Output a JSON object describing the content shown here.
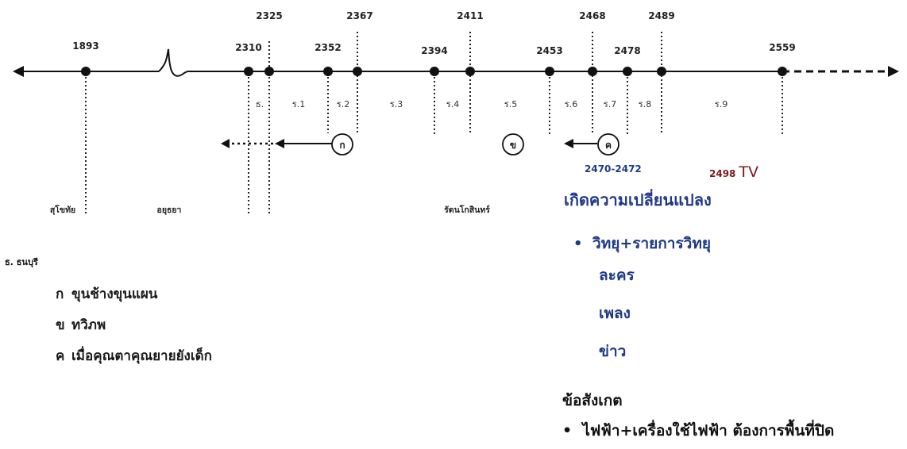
{
  "years": {
    "y1893": "1893",
    "y2310": "2310",
    "y2325": "2325",
    "y2352": "2352",
    "y2367": "2367",
    "y2394": "2394",
    "y2411": "2411",
    "y2453": "2453",
    "y2468": "2468",
    "y2478": "2478",
    "y2489": "2489",
    "y2559": "2559"
  },
  "periods": [
    "ธ.",
    "ร.1",
    "ร.2",
    "ร.3",
    "ร.4",
    "ร.5",
    "ร.6",
    "ร.7",
    "ร.8",
    "ร.9"
  ],
  "eras": {
    "sukhothai": "สุโขทัย",
    "ayutthaya": "อยุธยา",
    "rattanakosin": "รัตนโกสินทร์"
  },
  "markers": {
    "ko": "ก",
    "kho": "ข",
    "kho_khwai": "ค"
  },
  "legend": {
    "note": "ธ. ธนบุรี",
    "items": [
      {
        "key": "ก",
        "label": "ขุนช้างขุนแผน"
      },
      {
        "key": "ข",
        "label": "ทวิภพ"
      },
      {
        "key": "ค",
        "label": "เมื่อคุณตาคุณยายยังเด็ก"
      }
    ]
  },
  "notes": {
    "range": "2470-2472",
    "tv_year": "2498",
    "tv_label": "TV",
    "heading": "เกิดความเปลี่ยนแปลง",
    "bullet1": "วิทยุ+รายการวิทยุ",
    "sub_items": [
      "ละคร",
      "เพลง",
      "ข่าว"
    ],
    "observation_title": "ข้อสังเกต",
    "observation_item": "ไฟฟ้า+เครื่องใช้ไฟฟ้า ต้องการพื้นที่ปิด"
  },
  "colors": {
    "accent_blue": "#1f3a86",
    "tv_red": "#7a1a1a",
    "line": "#111111"
  }
}
